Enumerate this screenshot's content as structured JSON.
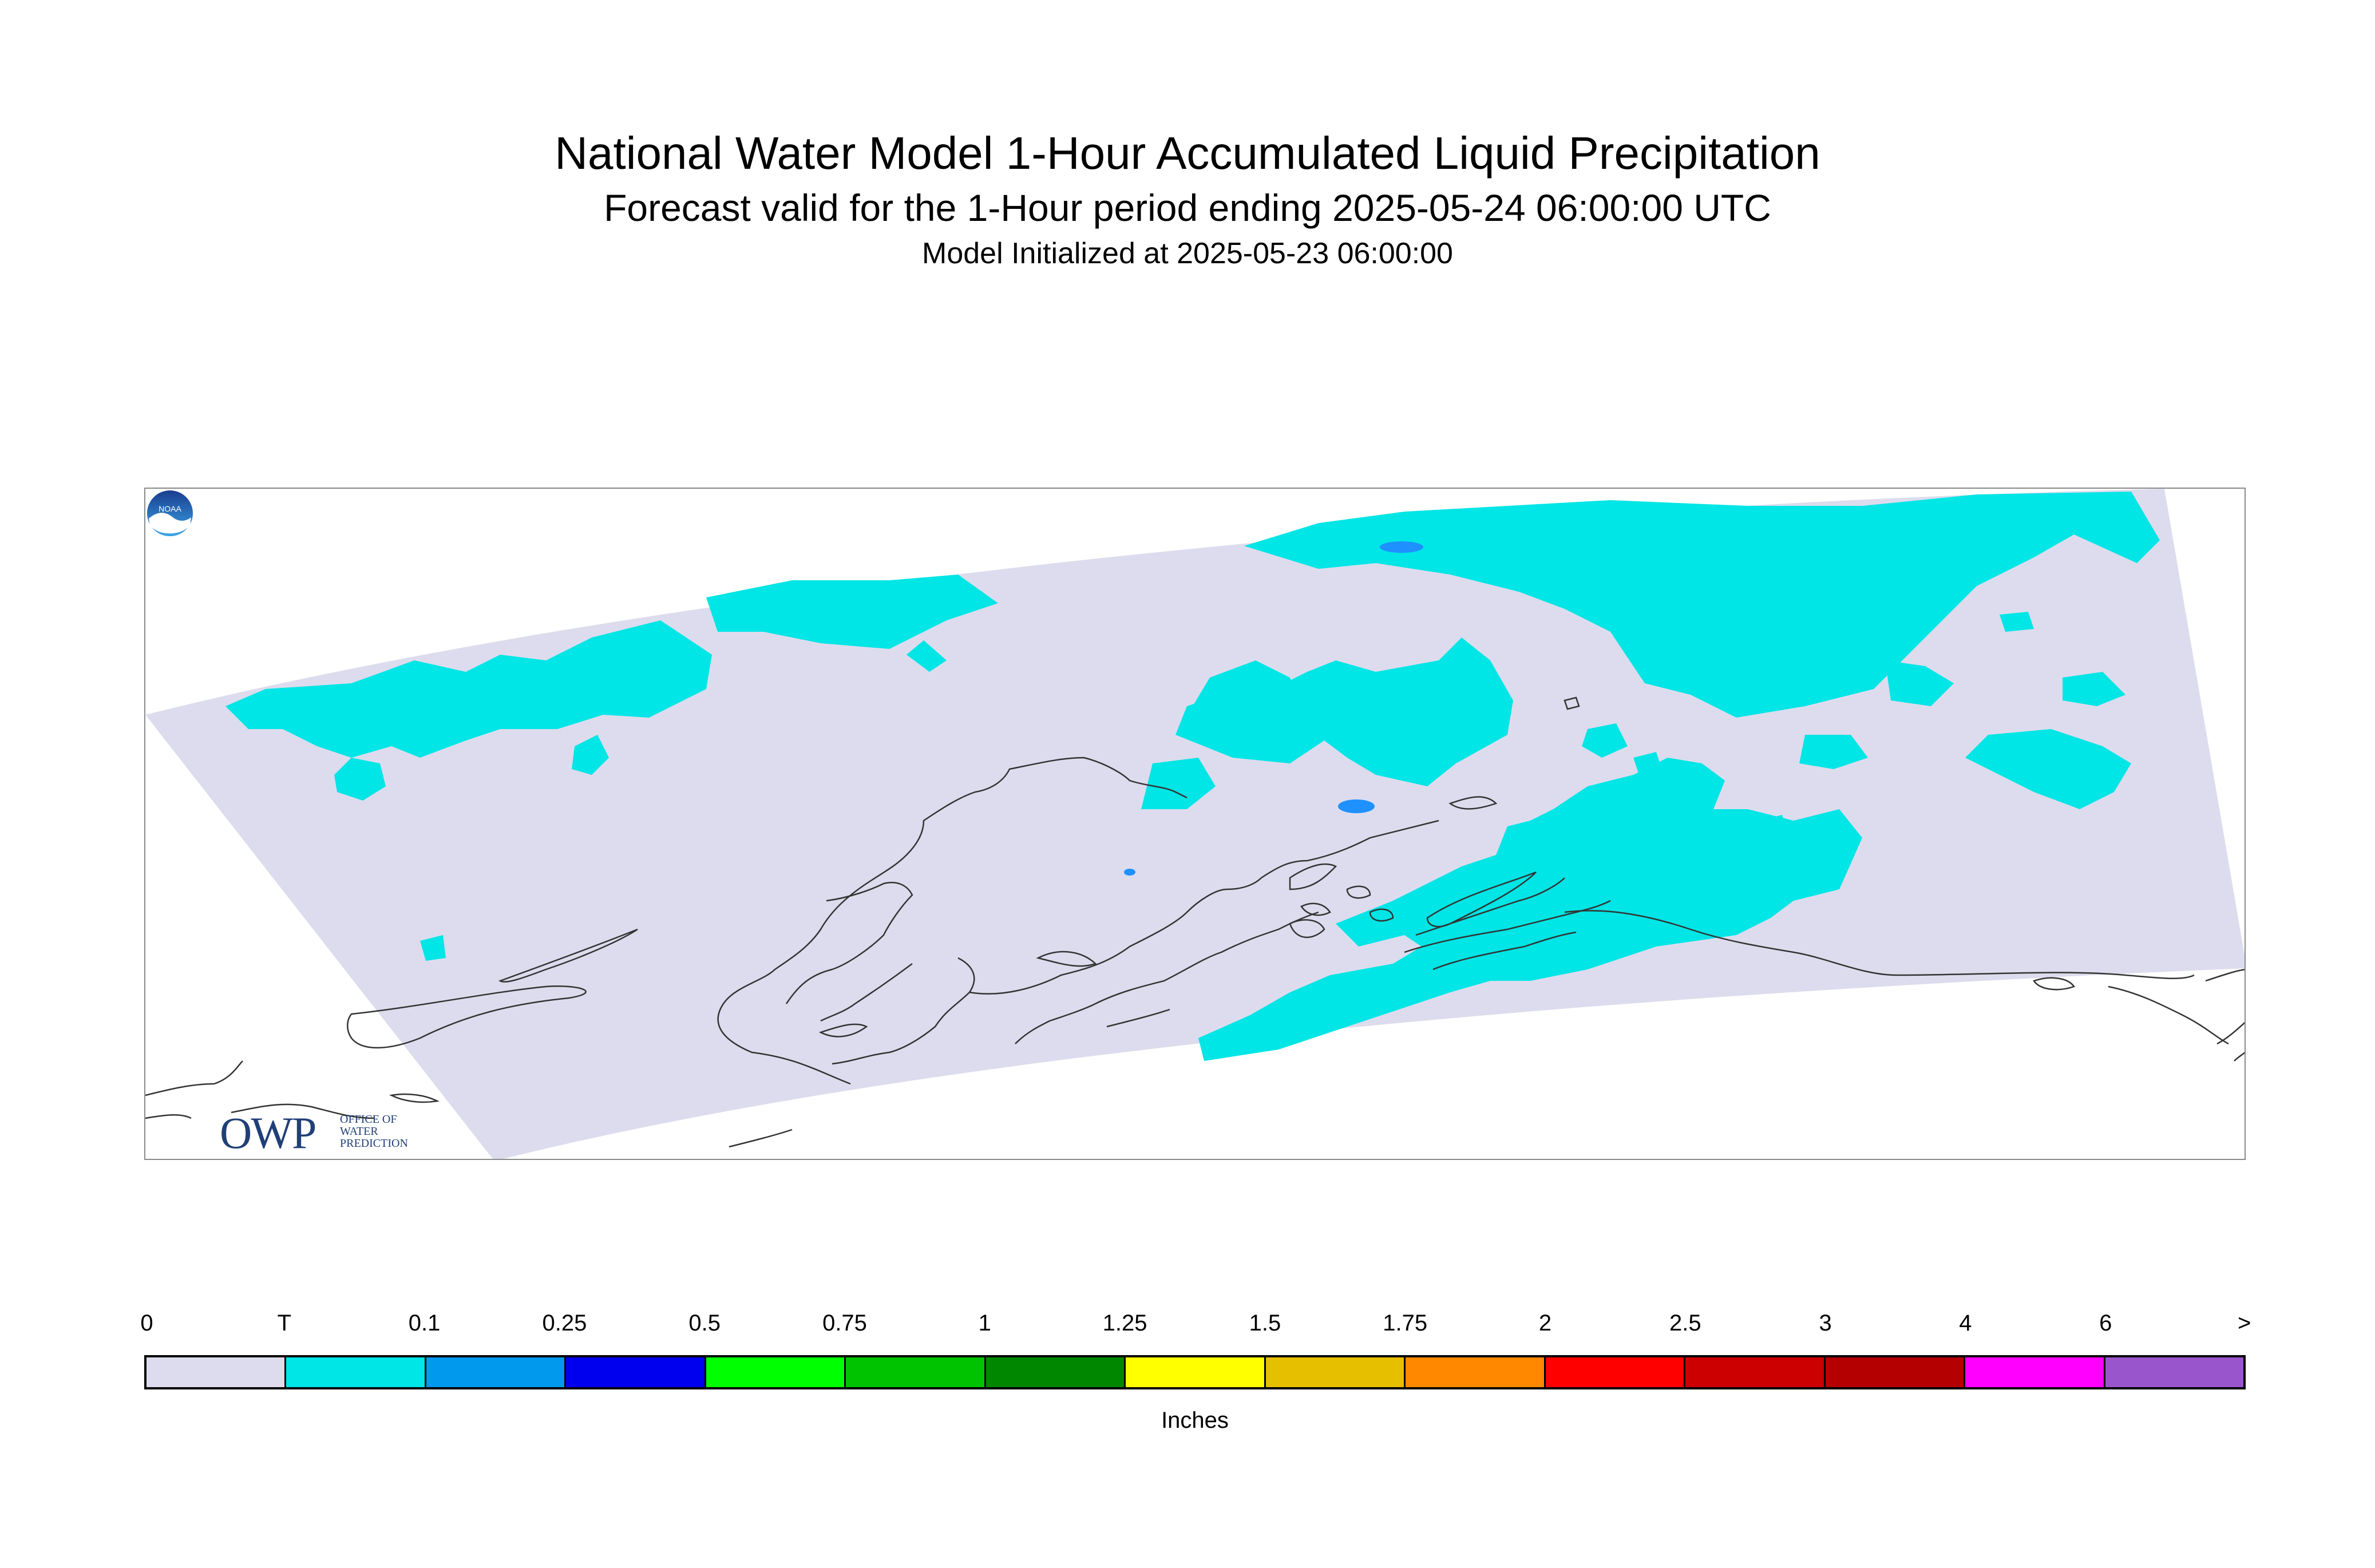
{
  "title": "National Water Model 1-Hour Accumulated Liquid Precipitation",
  "subtitle": "Forecast valid for the 1-Hour period ending 2025-05-24 06:00:00 UTC",
  "init_line": "Model Initialized at 2025-05-23 06:00:00",
  "logos": {
    "owp_big": "OWP",
    "owp_small_1": "OFFICE OF",
    "owp_small_2": "WATER",
    "owp_small_3": "PREDICTION",
    "noaa_text": "NOAA"
  },
  "legend": {
    "unit": "Inches",
    "labels": [
      "0",
      "T",
      "0.1",
      "0.25",
      "0.5",
      "0.75",
      "1",
      "1.25",
      "1.5",
      "1.75",
      "2",
      "2.5",
      "3",
      "4",
      "6",
      ">"
    ],
    "colors": [
      "#dcdcee",
      "#00e5e5",
      "#0099ee",
      "#0000ee",
      "#00ff00",
      "#00c300",
      "#008700",
      "#ffff00",
      "#e6bf00",
      "#ff8800",
      "#ff0000",
      "#cc0000",
      "#b40000",
      "#ff00ff",
      "#9955cc"
    ]
  },
  "map": {
    "domain_color": "#dcdcee",
    "trace_color": "#00e5e5",
    "light_color": "#1e90ff",
    "coast_color": "#333333"
  }
}
